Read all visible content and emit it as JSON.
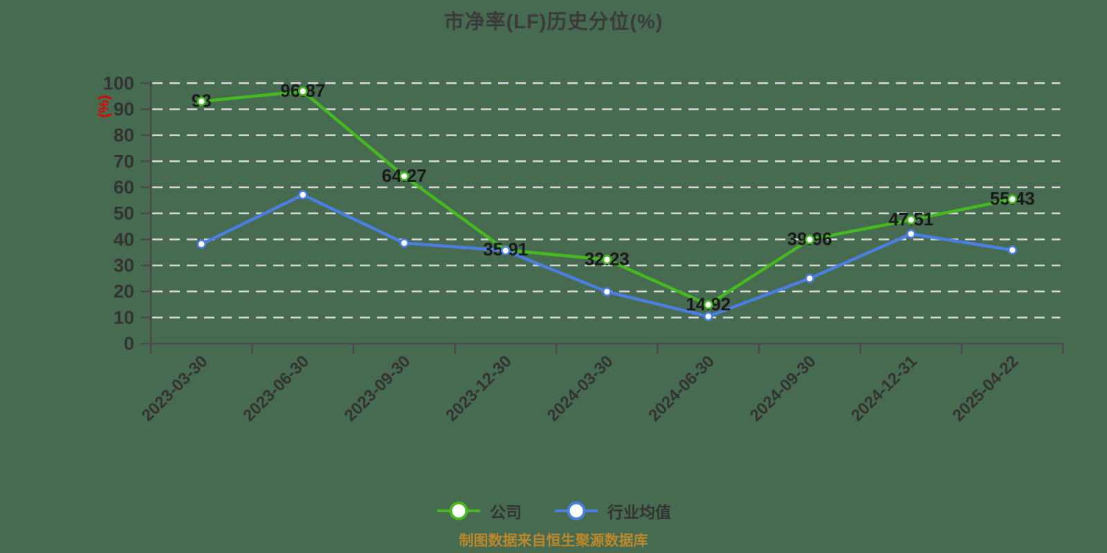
{
  "title": "市净率(LF)历史分位(%)",
  "y_axis_name": "(%)",
  "footer": "制图数据来自恒生聚源数据库",
  "legend": [
    {
      "label": "公司",
      "color": "#46b820"
    },
    {
      "label": "行业均值",
      "color": "#4a7ee0"
    }
  ],
  "colors": {
    "background": "#476b50",
    "axis": "#4a4a4a",
    "grid": "#d4d4d4",
    "tick_label": "#333333",
    "data_label": "#1a1a1a",
    "y_axis_name": "#e60000",
    "title": "#3b3b3b",
    "footer": "#bb882d",
    "marker_fill": "#ffffff"
  },
  "chart_data": {
    "type": "line",
    "title": "市净率(LF)历史分位(%)",
    "xlabel": "",
    "ylabel": "(%)",
    "ylim": [
      0,
      100
    ],
    "y_ticks": [
      0,
      10,
      20,
      30,
      40,
      50,
      60,
      70,
      80,
      90,
      100
    ],
    "grid": "horizontal-dashed",
    "legend_position": "bottom",
    "categories": [
      "2023-03-30",
      "2023-06-30",
      "2023-09-30",
      "2023-12-30",
      "2024-03-30",
      "2024-06-30",
      "2024-09-30",
      "2024-12-31",
      "2025-04-22"
    ],
    "series": [
      {
        "name": "公司",
        "color": "#46b820",
        "values": [
          93,
          96.87,
          64.27,
          35.91,
          32.23,
          14.92,
          39.96,
          47.51,
          55.43
        ],
        "point_labels": [
          "93",
          "96.87",
          "64.27",
          "35.91",
          "32.23",
          "14.92",
          "39.96",
          "47.51",
          "55.43"
        ]
      },
      {
        "name": "行业均值",
        "color": "#4a7ee0",
        "values": [
          38.2,
          57.1,
          38.6,
          35.7,
          19.9,
          10.4,
          25.0,
          42.1,
          35.9
        ],
        "point_labels": []
      }
    ]
  }
}
